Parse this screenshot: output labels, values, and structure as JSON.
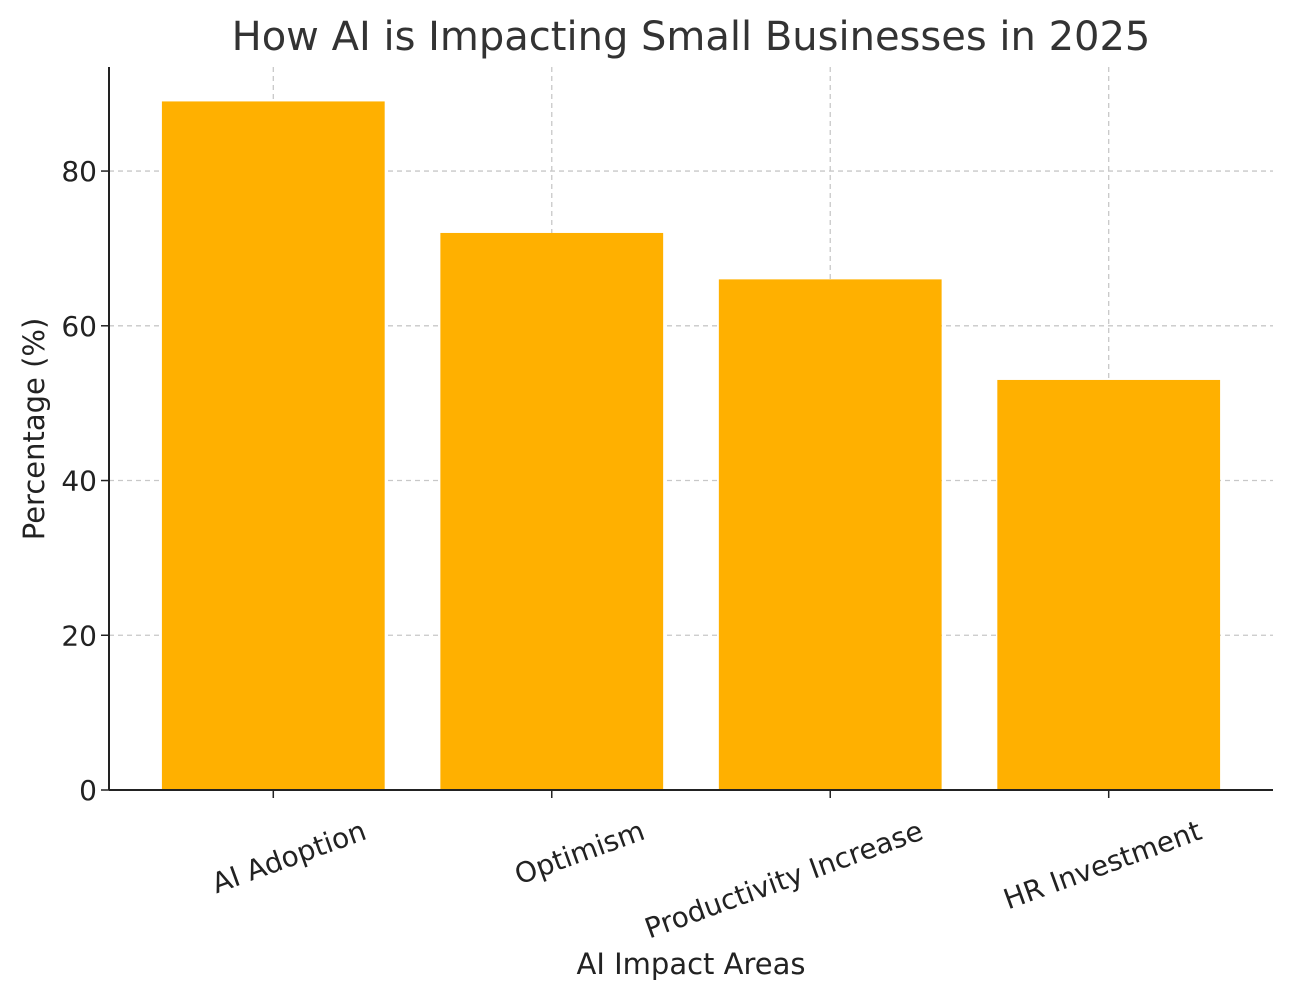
{
  "chart_data": {
    "type": "bar",
    "title": "How AI is Impacting Small Businesses in 2025",
    "xlabel": "AI Impact Areas",
    "ylabel": "Percentage (%)",
    "categories": [
      "AI Adoption",
      "Optimism",
      "Productivity Increase",
      "HR Investment"
    ],
    "values": [
      89,
      72,
      66,
      53
    ],
    "ylim": [
      0,
      93.45
    ],
    "yticks": [
      0,
      20,
      40,
      60,
      80
    ],
    "grid": true,
    "bar_color": "#FFB000",
    "legend": "none"
  }
}
